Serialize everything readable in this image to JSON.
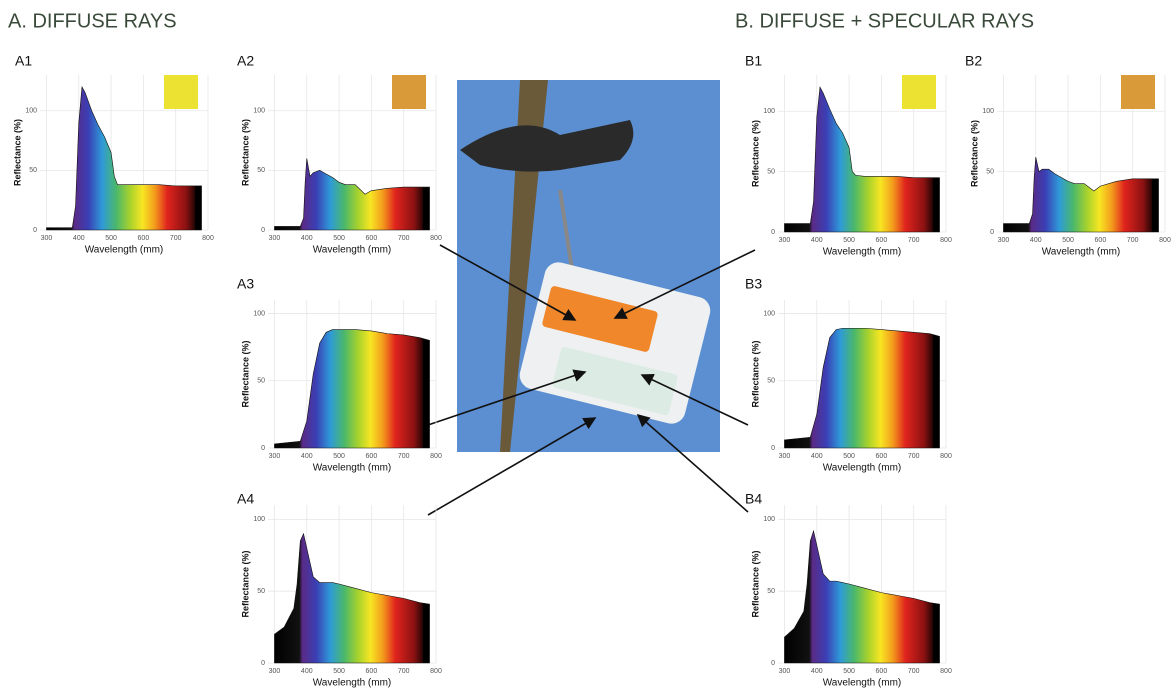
{
  "headings": [
    "A.  DIFFUSE RAYS",
    "B.  DIFFUSE + SPECULAR RAYS"
  ],
  "chart_data": [
    {
      "type": "area",
      "panel": "A1",
      "xlabel": "Wavelength (mm)",
      "ylabel": "Reflectance (%)",
      "swatch": "#ece232",
      "x": [
        300,
        380,
        390,
        400,
        410,
        420,
        440,
        460,
        480,
        500,
        510,
        520,
        550,
        600,
        650,
        700,
        750,
        780
      ],
      "values": [
        2,
        2,
        20,
        90,
        120,
        115,
        100,
        88,
        78,
        65,
        45,
        38,
        38,
        38,
        38,
        37,
        37,
        37
      ],
      "xlim": [
        280,
        800
      ],
      "xticks": [
        300,
        400,
        500,
        600,
        700,
        800
      ],
      "ylim": [
        0,
        130
      ],
      "yticks": [
        0,
        50,
        100
      ],
      "grid": true
    },
    {
      "type": "area",
      "panel": "A2",
      "xlabel": "Wavelength (mm)",
      "ylabel": "Reflectance (%)",
      "swatch": "#d99a3a",
      "x": [
        300,
        380,
        390,
        395,
        400,
        410,
        420,
        440,
        460,
        480,
        500,
        520,
        550,
        580,
        600,
        650,
        700,
        750,
        780
      ],
      "values": [
        3,
        3,
        10,
        40,
        60,
        45,
        48,
        50,
        47,
        44,
        40,
        38,
        38,
        30,
        33,
        35,
        36,
        36,
        36
      ],
      "xlim": [
        280,
        800
      ],
      "xticks": [
        300,
        400,
        500,
        600,
        700,
        800
      ],
      "ylim": [
        0,
        130
      ],
      "yticks": [
        0,
        50,
        100
      ],
      "grid": true
    },
    {
      "type": "area",
      "panel": "A3",
      "xlabel": "Wavelength (mm)",
      "ylabel": "Reflectance (%)",
      "x": [
        300,
        380,
        400,
        420,
        440,
        460,
        480,
        500,
        550,
        600,
        650,
        700,
        750,
        780
      ],
      "values": [
        3,
        5,
        20,
        55,
        78,
        86,
        88,
        88,
        88,
        87,
        85,
        84,
        82,
        80
      ],
      "xlim": [
        280,
        800
      ],
      "xticks": [
        300,
        400,
        500,
        600,
        700,
        800
      ],
      "ylim": [
        0,
        110
      ],
      "yticks": [
        0,
        50,
        100
      ],
      "grid": true
    },
    {
      "type": "area",
      "panel": "A4",
      "xlabel": "Wavelength (mm)",
      "ylabel": "Reflectance (%)",
      "x": [
        300,
        330,
        360,
        370,
        380,
        390,
        400,
        420,
        440,
        460,
        480,
        500,
        550,
        600,
        650,
        700,
        750,
        780
      ],
      "values": [
        20,
        25,
        38,
        55,
        85,
        90,
        80,
        60,
        56,
        56,
        56,
        55,
        52,
        49,
        47,
        45,
        42,
        41
      ],
      "xlim": [
        280,
        800
      ],
      "xticks": [
        300,
        400,
        500,
        600,
        700,
        800
      ],
      "ylim": [
        0,
        110
      ],
      "yticks": [
        0,
        50,
        100
      ],
      "grid": true
    },
    {
      "type": "area",
      "panel": "B1",
      "xlabel": "Wavelength (mm)",
      "ylabel": "Reflectance (%)",
      "swatch": "#ece232",
      "x": [
        300,
        380,
        390,
        400,
        410,
        420,
        440,
        460,
        480,
        500,
        510,
        520,
        550,
        600,
        650,
        700,
        750,
        780
      ],
      "values": [
        7,
        7,
        25,
        95,
        120,
        115,
        102,
        90,
        82,
        70,
        50,
        47,
        46,
        46,
        46,
        45,
        45,
        45
      ],
      "xlim": [
        280,
        800
      ],
      "xticks": [
        300,
        400,
        500,
        600,
        700,
        800
      ],
      "ylim": [
        0,
        130
      ],
      "yticks": [
        0,
        50,
        100
      ],
      "grid": true
    },
    {
      "type": "area",
      "panel": "B2",
      "xlabel": "Wavelength (mm)",
      "ylabel": "Reflectance (%)",
      "swatch": "#d99a3a",
      "x": [
        300,
        380,
        390,
        395,
        400,
        410,
        420,
        440,
        460,
        480,
        500,
        520,
        550,
        580,
        600,
        650,
        700,
        750,
        780
      ],
      "values": [
        7,
        7,
        15,
        45,
        62,
        50,
        52,
        52,
        48,
        45,
        42,
        40,
        40,
        34,
        38,
        42,
        44,
        44,
        44
      ],
      "xlim": [
        280,
        800
      ],
      "xticks": [
        300,
        400,
        500,
        600,
        700,
        800
      ],
      "ylim": [
        0,
        130
      ],
      "yticks": [
        0,
        50,
        100
      ],
      "grid": true
    },
    {
      "type": "area",
      "panel": "B3",
      "xlabel": "Wavelength (mm)",
      "ylabel": "Reflectance (%)",
      "x": [
        300,
        380,
        400,
        420,
        440,
        460,
        480,
        500,
        550,
        600,
        650,
        700,
        750,
        780
      ],
      "values": [
        6,
        8,
        25,
        60,
        82,
        88,
        89,
        89,
        89,
        88,
        87,
        86,
        85,
        83
      ],
      "xlim": [
        280,
        800
      ],
      "xticks": [
        300,
        400,
        500,
        600,
        700,
        800
      ],
      "ylim": [
        0,
        110
      ],
      "yticks": [
        0,
        50,
        100
      ],
      "grid": true
    },
    {
      "type": "area",
      "panel": "B4",
      "xlabel": "Wavelength (mm)",
      "ylabel": "Reflectance (%)",
      "x": [
        300,
        330,
        360,
        370,
        380,
        390,
        400,
        420,
        440,
        460,
        480,
        500,
        550,
        600,
        650,
        700,
        750,
        780
      ],
      "values": [
        18,
        24,
        36,
        55,
        85,
        92,
        82,
        62,
        57,
        57,
        56,
        55,
        52,
        49,
        47,
        45,
        42,
        41
      ],
      "xlim": [
        280,
        800
      ],
      "xticks": [
        300,
        400,
        500,
        600,
        700,
        800
      ],
      "ylim": [
        0,
        110
      ],
      "yticks": [
        0,
        50,
        100
      ],
      "grid": true
    }
  ]
}
